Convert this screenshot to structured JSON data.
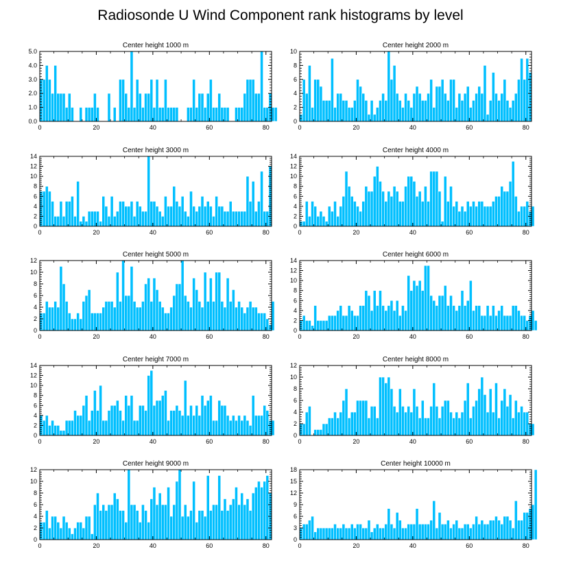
{
  "chart_data": {
    "title": "Radiosonde U Wind Component rank histograms by level",
    "bar_color": "#00bfff",
    "bar_edge_color": "#ffffff",
    "type": "bar",
    "panels": [
      {
        "title": "Center height 1000 m",
        "xlim": [
          0,
          82
        ],
        "xticks": [
          0,
          20,
          40,
          60,
          80
        ],
        "ylim": [
          0,
          5
        ],
        "yticks": [
          0,
          1,
          2,
          3,
          4,
          5
        ],
        "ytick_labels": [
          "0.0",
          "1.0",
          "2.0",
          "3.0",
          "4.0",
          "5.0"
        ],
        "values": [
          3,
          3,
          4,
          3,
          2,
          4,
          2,
          2,
          2,
          1,
          2,
          1,
          0,
          0,
          1,
          0,
          1,
          1,
          1,
          2,
          1,
          0,
          0,
          0,
          2,
          0,
          1,
          0,
          3,
          3,
          2,
          1,
          5,
          1,
          3,
          2,
          1,
          2,
          2,
          3,
          1,
          3,
          1,
          1,
          3,
          1,
          1,
          1,
          1,
          0,
          0,
          0,
          1,
          1,
          3,
          1,
          2,
          2,
          1,
          2,
          3,
          1,
          1,
          2,
          1,
          1,
          1,
          0,
          0,
          1,
          1,
          1,
          2,
          3,
          3,
          3,
          2,
          2,
          5,
          1,
          1,
          2,
          1,
          1
        ],
        "note": "values estimated from image"
      },
      {
        "title": "Center height 2000 m",
        "xlim": [
          0,
          82
        ],
        "xticks": [
          0,
          20,
          40,
          60,
          80
        ],
        "ylim": [
          0,
          10
        ],
        "yticks": [
          0,
          2,
          4,
          6,
          8,
          10
        ],
        "values": [
          1,
          6,
          4,
          8,
          2,
          6,
          6,
          5,
          3,
          3,
          3,
          9,
          2,
          4,
          4,
          3,
          3,
          2,
          2,
          3,
          6,
          5,
          4,
          3,
          1,
          3,
          1,
          2,
          3,
          4,
          3,
          10,
          6,
          8,
          4,
          3,
          2,
          4,
          3,
          2,
          4,
          5,
          4,
          3,
          3,
          4,
          6,
          2,
          5,
          5,
          6,
          4,
          3,
          6,
          6,
          2,
          4,
          3,
          4,
          5,
          2,
          3,
          4,
          5,
          4,
          8,
          1,
          3,
          7,
          4,
          3,
          4,
          6,
          3,
          2,
          3,
          4,
          6,
          9,
          6,
          9,
          7
        ]
      },
      {
        "title": "Center height 3000 m",
        "xlim": [
          0,
          82
        ],
        "xticks": [
          0,
          20,
          40,
          60,
          80
        ],
        "ylim": [
          0,
          14
        ],
        "yticks": [
          0,
          2,
          4,
          6,
          8,
          10,
          12,
          14
        ],
        "values": [
          7,
          7,
          8,
          7,
          5,
          2,
          2,
          5,
          2,
          5,
          5,
          6,
          2,
          9,
          1,
          2,
          1,
          3,
          3,
          3,
          3,
          1,
          6,
          4,
          2,
          6,
          2,
          3,
          5,
          5,
          4,
          4,
          5,
          2,
          5,
          4,
          3,
          3,
          14,
          5,
          5,
          4,
          3,
          2,
          6,
          4,
          4,
          8,
          5,
          4,
          6,
          3,
          2,
          7,
          4,
          3,
          4,
          6,
          4,
          5,
          4,
          2,
          6,
          4,
          4,
          3,
          3,
          5,
          3,
          3,
          3,
          3,
          3,
          10,
          5,
          9,
          3,
          5,
          11,
          3,
          3,
          12
        ]
      },
      {
        "title": "Center height 4000 m",
        "xlim": [
          0,
          82
        ],
        "xticks": [
          0,
          20,
          40,
          60,
          80
        ],
        "ylim": [
          0,
          14
        ],
        "yticks": [
          0,
          2,
          4,
          6,
          8,
          10,
          12,
          14
        ],
        "values": [
          1,
          1,
          5,
          2,
          5,
          4,
          2,
          3,
          2,
          1,
          4,
          3,
          5,
          2,
          4,
          6,
          11,
          8,
          6,
          5,
          4,
          3,
          5,
          8,
          7,
          7,
          10,
          12,
          9,
          7,
          5,
          7,
          6,
          8,
          7,
          5,
          5,
          8,
          10,
          10,
          9,
          6,
          7,
          5,
          8,
          5,
          11,
          11,
          11,
          7,
          1,
          10,
          5,
          8,
          4,
          5,
          3,
          4,
          3,
          5,
          4,
          5,
          4,
          5,
          5,
          4,
          4,
          4,
          5,
          6,
          6,
          8,
          7,
          7,
          9,
          13,
          6,
          3,
          4,
          4,
          5,
          3,
          4
        ]
      },
      {
        "title": "Center height 5000 m",
        "xlim": [
          0,
          82
        ],
        "xticks": [
          0,
          20,
          40,
          60,
          80
        ],
        "ylim": [
          0,
          12
        ],
        "yticks": [
          0,
          2,
          4,
          6,
          8,
          10,
          12
        ],
        "values": [
          3,
          3,
          5,
          4,
          4,
          5,
          4,
          11,
          8,
          5,
          3,
          2,
          2,
          3,
          2,
          5,
          6,
          7,
          3,
          3,
          3,
          3,
          4,
          5,
          5,
          5,
          4,
          10,
          5,
          12,
          6,
          6,
          11,
          5,
          4,
          4,
          5,
          8,
          9,
          5,
          9,
          7,
          5,
          4,
          3,
          3,
          4,
          6,
          8,
          8,
          12,
          6,
          5,
          4,
          9,
          7,
          5,
          4,
          10,
          5,
          9,
          5,
          10,
          10,
          5,
          4,
          9,
          5,
          7,
          4,
          5,
          4,
          3,
          4,
          5,
          4,
          4,
          3,
          3,
          3,
          2,
          1,
          5
        ]
      },
      {
        "title": "Center height 6000 m",
        "xlim": [
          0,
          82
        ],
        "xticks": [
          0,
          20,
          40,
          60,
          80
        ],
        "ylim": [
          0,
          14
        ],
        "yticks": [
          0,
          2,
          4,
          6,
          8,
          10,
          12,
          14
        ],
        "values": [
          2,
          3,
          2,
          2,
          1,
          5,
          2,
          2,
          2,
          2,
          3,
          3,
          3,
          4,
          5,
          3,
          3,
          5,
          4,
          3,
          3,
          5,
          5,
          8,
          7,
          4,
          8,
          5,
          8,
          5,
          4,
          5,
          6,
          4,
          6,
          3,
          5,
          4,
          11,
          8,
          10,
          9,
          10,
          8,
          13,
          13,
          7,
          6,
          5,
          7,
          7,
          9,
          5,
          7,
          5,
          4,
          5,
          8,
          5,
          6,
          10,
          4,
          5,
          5,
          3,
          3,
          5,
          3,
          5,
          3,
          4,
          5,
          3,
          3,
          3,
          5,
          5,
          4,
          3,
          3,
          2,
          3,
          4,
          2
        ]
      },
      {
        "title": "Center height 7000 m",
        "xlim": [
          0,
          82
        ],
        "xticks": [
          0,
          20,
          40,
          60,
          80
        ],
        "ylim": [
          0,
          14
        ],
        "yticks": [
          0,
          2,
          4,
          6,
          8,
          10,
          12,
          14
        ],
        "values": [
          4,
          3,
          4,
          2,
          3,
          2,
          2,
          1,
          1,
          3,
          3,
          3,
          5,
          4,
          4,
          6,
          8,
          3,
          5,
          9,
          5,
          10,
          3,
          3,
          5,
          6,
          6,
          7,
          5,
          3,
          8,
          6,
          8,
          3,
          3,
          6,
          6,
          5,
          12,
          13,
          6,
          7,
          7,
          8,
          9,
          3,
          5,
          5,
          6,
          5,
          4,
          11,
          4,
          6,
          4,
          6,
          4,
          8,
          6,
          7,
          8,
          3,
          3,
          7,
          6,
          6,
          4,
          3,
          4,
          3,
          4,
          3,
          4,
          3,
          2,
          8,
          4,
          4,
          4,
          6,
          5,
          3,
          3
        ]
      },
      {
        "title": "Center height 8000 m",
        "xlim": [
          0,
          82
        ],
        "xticks": [
          0,
          20,
          40,
          60,
          80
        ],
        "ylim": [
          0,
          12
        ],
        "yticks": [
          0,
          2,
          4,
          6,
          8,
          10,
          12
        ],
        "values": [
          2,
          2,
          4,
          5,
          0,
          1,
          1,
          1,
          2,
          2,
          3,
          3,
          4,
          3,
          4,
          6,
          8,
          3,
          4,
          4,
          6,
          6,
          6,
          6,
          3,
          5,
          5,
          3,
          10,
          10,
          9,
          10,
          8,
          5,
          4,
          8,
          5,
          4,
          5,
          4,
          8,
          5,
          3,
          6,
          3,
          3,
          5,
          9,
          5,
          3,
          5,
          6,
          6,
          4,
          3,
          4,
          3,
          4,
          6,
          9,
          3,
          5,
          6,
          8,
          10,
          7,
          4,
          8,
          4,
          9,
          3,
          6,
          8,
          5,
          7,
          3,
          6,
          4,
          5,
          4,
          4,
          2,
          2
        ]
      },
      {
        "title": "Center height 9000 m",
        "xlim": [
          0,
          82
        ],
        "xticks": [
          0,
          20,
          40,
          60,
          80
        ],
        "ylim": [
          0,
          12
        ],
        "yticks": [
          0,
          2,
          4,
          6,
          8,
          10,
          12
        ],
        "values": [
          3,
          3,
          5,
          2,
          4,
          4,
          3,
          2,
          4,
          3,
          2,
          1,
          2,
          3,
          3,
          2,
          4,
          4,
          1,
          6,
          8,
          5,
          6,
          5,
          6,
          6,
          8,
          7,
          5,
          5,
          3,
          12,
          6,
          6,
          5,
          3,
          6,
          5,
          3,
          7,
          9,
          6,
          8,
          6,
          6,
          9,
          4,
          6,
          10,
          12,
          4,
          6,
          4,
          5,
          10,
          3,
          5,
          5,
          4,
          11,
          5,
          6,
          6,
          11,
          5,
          7,
          5,
          6,
          7,
          9,
          6,
          8,
          6,
          7,
          5,
          8,
          9,
          10,
          9,
          10,
          11,
          8
        ]
      },
      {
        "title": "Center height 10000 m",
        "xlim": [
          0,
          82
        ],
        "xticks": [
          0,
          20,
          40,
          60,
          80
        ],
        "ylim": [
          0,
          18
        ],
        "yticks": [
          0,
          3,
          6,
          9,
          12,
          15,
          18
        ],
        "values": [
          3,
          4,
          4,
          5,
          6,
          2,
          3,
          3,
          3,
          3,
          3,
          3,
          4,
          3,
          3,
          4,
          3,
          3,
          4,
          3,
          4,
          4,
          3,
          3,
          5,
          2,
          3,
          4,
          3,
          3,
          4,
          8,
          4,
          3,
          7,
          5,
          3,
          3,
          4,
          4,
          4,
          8,
          4,
          4,
          4,
          4,
          5,
          10,
          3,
          7,
          4,
          4,
          5,
          3,
          4,
          5,
          3,
          3,
          4,
          4,
          3,
          4,
          6,
          4,
          5,
          4,
          4,
          5,
          5,
          6,
          5,
          4,
          6,
          6,
          5,
          3,
          10,
          5,
          5,
          7,
          7,
          8,
          9,
          18
        ]
      }
    ]
  }
}
